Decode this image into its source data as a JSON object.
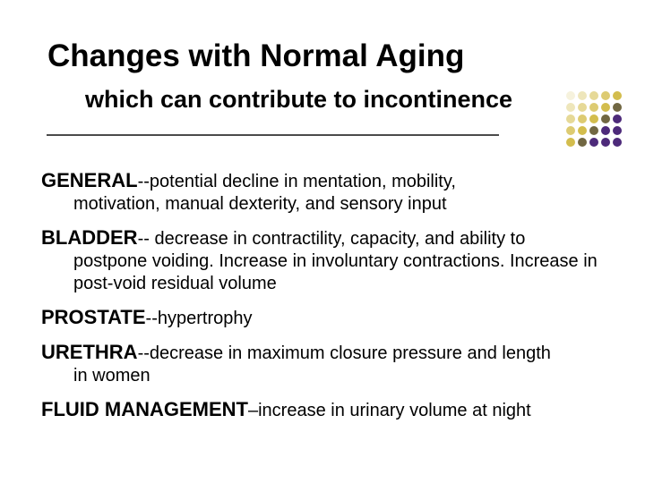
{
  "title": "Changes with Normal Aging",
  "subtitle": "which can contribute to incontinence",
  "divider_color": "#4b4b4b",
  "dot_grid": {
    "rows": 5,
    "cols": 5,
    "colors": [
      "#f6f2dd",
      "#eee6bb",
      "#e6d997",
      "#ddcb72",
      "#d3bd4d",
      "#eee6bb",
      "#e6d997",
      "#ddcb72",
      "#d3bd4d",
      "#716742",
      "#e6d997",
      "#ddcb72",
      "#d3bd4d",
      "#716742",
      "#4d2a7a",
      "#ddcb72",
      "#d3bd4d",
      "#716742",
      "#4d2a7a",
      "#4d2a7a",
      "#d3bd4d",
      "#716742",
      "#4d2a7a",
      "#4d2a7a",
      "#4d2a7a"
    ]
  },
  "items": [
    {
      "term": "GENERAL",
      "dash": "--",
      "desc_first": "potential decline in mentation, mobility,",
      "desc_cont": "motivation, manual dexterity, and sensory input"
    },
    {
      "term": "BLADDER",
      "dash": "--",
      "desc_first": " decrease in contractility, capacity, and ability to",
      "desc_cont": "postpone voiding. Increase in involuntary contractions. Increase in post-void residual volume"
    },
    {
      "term": "PROSTATE",
      "dash": "--",
      "desc_first": "hypertrophy",
      "desc_cont": ""
    },
    {
      "term": "URETHRA",
      "dash": "--",
      "desc_first": "decrease in maximum closure pressure and length",
      "desc_cont": "in women"
    },
    {
      "term": "FLUID MANAGEMENT",
      "dash": "–",
      "desc_first": "increase in urinary volume at night",
      "desc_cont": ""
    }
  ]
}
